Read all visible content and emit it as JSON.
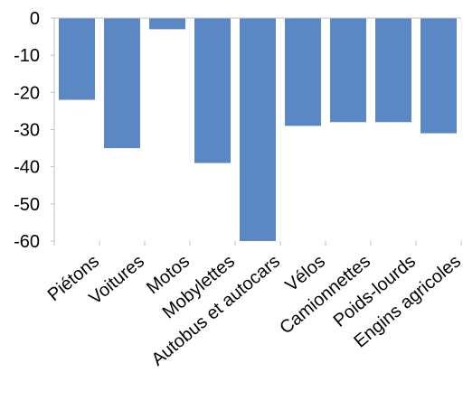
{
  "chart_data": {
    "type": "bar",
    "categories": [
      "Piétons",
      "Voitures",
      "Motos",
      "Mobylettes",
      "Autobus et autocars",
      "Vélos",
      "Camionnettes",
      "Poids-lourds",
      "Engins agricoles"
    ],
    "values": [
      -22,
      -35,
      -3,
      -39,
      -60,
      -29,
      -28,
      -28,
      -31
    ],
    "title": "",
    "xlabel": "",
    "ylabel": "",
    "ylim": [
      -60,
      0
    ],
    "yticks": [
      "0",
      "-10",
      "-20",
      "-30",
      "-40",
      "-50",
      "-60"
    ],
    "grid": false,
    "legend": "none",
    "bar_color": "#5b87c5",
    "axis_color": "#c0c0c0"
  }
}
